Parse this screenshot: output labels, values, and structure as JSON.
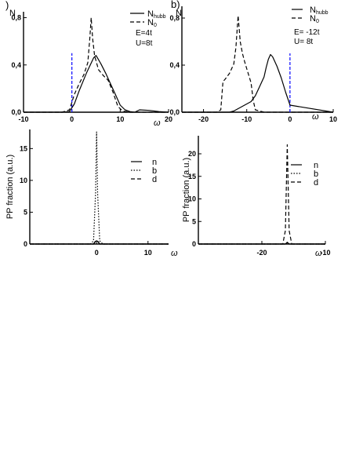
{
  "chart_data": [
    {
      "id": "a-top",
      "type": "line",
      "panel_label": ")",
      "ylabel": "N",
      "xlabel": "ω",
      "xlim": [
        -10,
        20
      ],
      "ylim": [
        0,
        0.85
      ],
      "xticks": [
        {
          "value": -10,
          "label": "-10"
        },
        {
          "value": 0,
          "label": "0"
        },
        {
          "value": 10,
          "label": "10"
        },
        {
          "value": 20,
          "label": "20"
        }
      ],
      "yticks": [
        {
          "value": 0,
          "label": "0,0"
        },
        {
          "value": 0.4,
          "label": "0,4"
        },
        {
          "value": 0.8,
          "label": "0,8"
        }
      ],
      "annotations": [
        "E=4t",
        "U=8t"
      ],
      "vline": {
        "x": 0,
        "ymax": 0.5,
        "color": "#1a1aff"
      },
      "legend_position": "top-right",
      "series": [
        {
          "name": "N",
          "subscript": "hubb",
          "style": "solid",
          "x": [
            -10,
            -2,
            -0.5,
            0.5,
            1.5,
            3,
            4.5,
            5,
            6,
            7,
            8,
            9,
            10,
            11,
            12,
            13,
            14,
            16,
            18,
            20
          ],
          "y": [
            0,
            0,
            0.005,
            0.07,
            0.18,
            0.33,
            0.46,
            0.48,
            0.41,
            0.33,
            0.24,
            0.15,
            0.06,
            0.02,
            0.005,
            0,
            0.02,
            0.015,
            0.005,
            0
          ]
        },
        {
          "name": "N",
          "subscript": "0",
          "style": "dashed",
          "x": [
            -10,
            -2,
            -0.5,
            0.5,
            1.5,
            2.5,
            3.3,
            3.7,
            4,
            4.3,
            4.7,
            5.5,
            6.5,
            7.5,
            8.5,
            9.5,
            10.5,
            12,
            20
          ],
          "y": [
            0,
            0,
            0.02,
            0.15,
            0.24,
            0.32,
            0.42,
            0.62,
            0.8,
            0.62,
            0.48,
            0.36,
            0.31,
            0.27,
            0.17,
            0.05,
            0.01,
            0,
            0
          ]
        }
      ]
    },
    {
      "id": "b-top",
      "type": "line",
      "panel_label": "b)",
      "ylabel": "N",
      "xlabel": "ω",
      "xlim": [
        -25,
        10
      ],
      "ylim": [
        0,
        0.9
      ],
      "xticks": [
        {
          "value": -20,
          "label": "-20"
        },
        {
          "value": -10,
          "label": "-10"
        },
        {
          "value": 0,
          "label": "0"
        },
        {
          "value": 10,
          "label": "10"
        }
      ],
      "yticks": [
        {
          "value": 0,
          "label": "0,0"
        },
        {
          "value": 0.4,
          "label": "0,4"
        },
        {
          "value": 0.8,
          "label": "0,8"
        }
      ],
      "annotations": [
        "E= -12t",
        "U= 8t"
      ],
      "vline": {
        "x": 0,
        "ymax": 0.5,
        "color": "#1a1aff"
      },
      "legend_position": "top-right",
      "series": [
        {
          "name": "N",
          "subscript": "hubb",
          "style": "solid",
          "x": [
            -25,
            -14,
            -13,
            -12,
            -11,
            -10,
            -9,
            -8,
            -7,
            -6,
            -5.5,
            -5,
            -4.5,
            -4,
            -3,
            -2,
            -1,
            0,
            10
          ],
          "y": [
            0,
            0,
            0.01,
            0.03,
            0.05,
            0.07,
            0.09,
            0.14,
            0.22,
            0.3,
            0.38,
            0.45,
            0.49,
            0.47,
            0.39,
            0.29,
            0.17,
            0.06,
            0
          ]
        },
        {
          "name": "N",
          "subscript": "0",
          "style": "dashed",
          "x": [
            -25,
            -17,
            -16,
            -15.5,
            -15,
            -14,
            -13,
            -12.5,
            -12,
            -11.5,
            -11,
            -10.5,
            -10,
            -9,
            -8.5,
            -8,
            -6,
            10
          ],
          "y": [
            0,
            0,
            0.02,
            0.26,
            0.28,
            0.33,
            0.41,
            0.55,
            0.82,
            0.6,
            0.5,
            0.43,
            0.37,
            0.25,
            0.1,
            0.02,
            0,
            0
          ]
        }
      ]
    },
    {
      "id": "a-bottom",
      "type": "line",
      "ylabel": "PP fraction (a.u.)",
      "xlabel": "ω",
      "xlim": [
        -13,
        14
      ],
      "ylim": [
        0,
        18
      ],
      "xticks": [
        {
          "value": 0,
          "label": "0"
        },
        {
          "value": 10,
          "label": "10"
        }
      ],
      "yticks": [
        {
          "value": 0,
          "label": "0"
        },
        {
          "value": 5,
          "label": "5"
        },
        {
          "value": 10,
          "label": "10"
        },
        {
          "value": 15,
          "label": "15"
        }
      ],
      "legend_position": "top-right",
      "series": [
        {
          "name": "n",
          "style": "solid",
          "x": [
            -13,
            -0.6,
            -0.3,
            0,
            0.3,
            0.6,
            14
          ],
          "y": [
            0,
            0,
            0.4,
            0.5,
            0.4,
            0,
            0
          ]
        },
        {
          "name": "b",
          "style": "dotted",
          "x": [
            -13,
            -1.2,
            -0.6,
            -0.2,
            0,
            0.2,
            0.6,
            1.2,
            14
          ],
          "y": [
            0,
            0,
            0.5,
            8,
            17.6,
            8,
            0.5,
            0,
            0
          ]
        },
        {
          "name": "d",
          "style": "dashed",
          "x": [
            -13,
            -0.6,
            -0.3,
            0,
            0.3,
            0.6,
            14
          ],
          "y": [
            0,
            0,
            0.3,
            0.4,
            0.3,
            0,
            0
          ]
        }
      ]
    },
    {
      "id": "b-bottom",
      "type": "line",
      "ylabel": "PP fraction (a.u.)",
      "xlabel": "ω",
      "xlim": [
        -30,
        -10
      ],
      "ylim": [
        0,
        24
      ],
      "xticks": [
        {
          "value": -20,
          "label": "-20"
        },
        {
          "value": -10,
          "label": "-10"
        }
      ],
      "yticks": [
        {
          "value": 0,
          "label": "0"
        },
        {
          "value": 5,
          "label": "5"
        },
        {
          "value": 10,
          "label": "10"
        },
        {
          "value": 15,
          "label": "15"
        },
        {
          "value": 20,
          "label": "20"
        }
      ],
      "legend_position": "top-right",
      "series": [
        {
          "name": "n",
          "style": "solid",
          "x": [
            -30,
            -16.3,
            -16,
            -15.7,
            -10
          ],
          "y": [
            0,
            0,
            0.4,
            0,
            0
          ]
        },
        {
          "name": "b",
          "style": "dotted",
          "x": [
            -30,
            -16.3,
            -16,
            -15.7,
            -10
          ],
          "y": [
            0,
            0,
            0.3,
            0,
            0
          ]
        },
        {
          "name": "d",
          "style": "dashed",
          "x": [
            -30,
            -16.7,
            -16.3,
            -16,
            -15.7,
            -15.3,
            -10
          ],
          "y": [
            0,
            0,
            3,
            22,
            3,
            0,
            0
          ]
        }
      ]
    }
  ]
}
